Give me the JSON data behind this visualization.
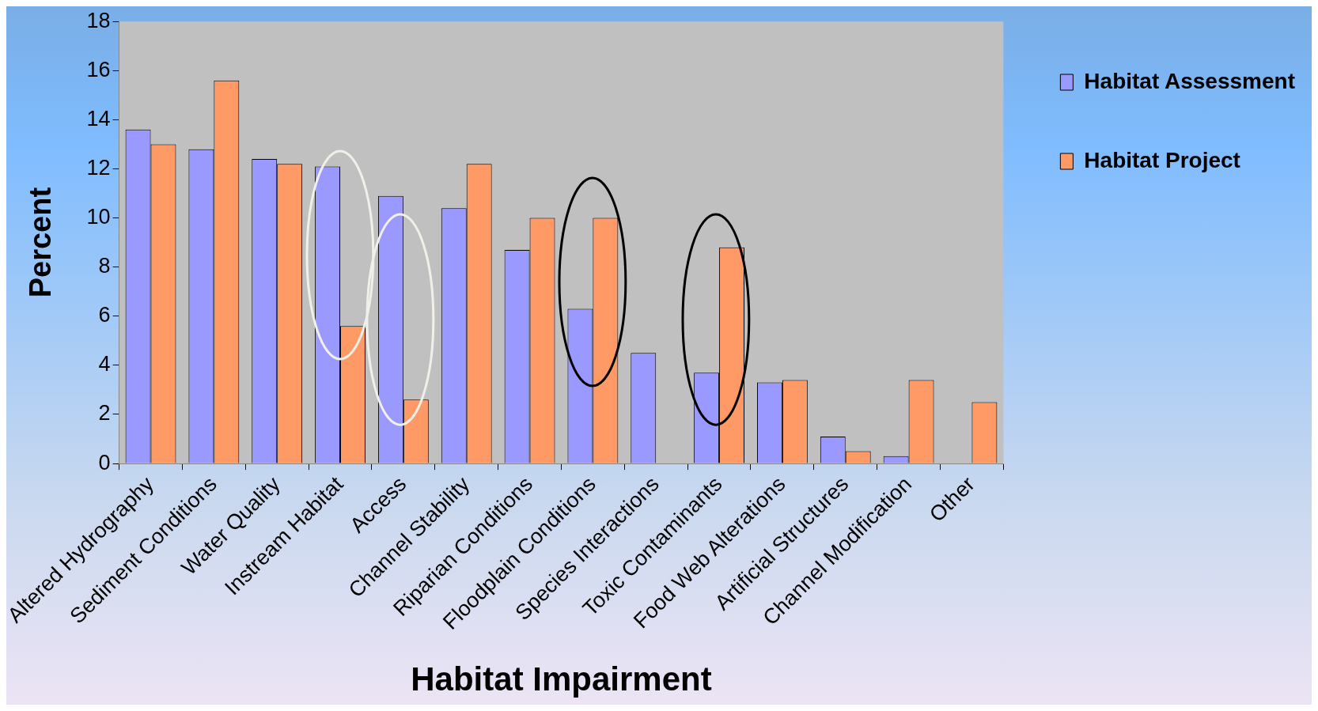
{
  "chart_data": {
    "type": "bar",
    "xlabel": "Habitat Impairment",
    "ylabel": "Percent",
    "categories": [
      "Altered Hydrography",
      "Sediment Conditions",
      "Water Quality",
      "Instream Habitat",
      "Access",
      "Channel Stability",
      "Riparian Conditions",
      "Floodplain Conditions",
      "Species Interactions",
      "Toxic Contaminants",
      "Food Web Alterations",
      "Artificial Structures",
      "Channel Modification",
      "Other"
    ],
    "series": [
      {
        "name": "Habitat Assessment",
        "color": "#9999ff",
        "values": [
          13.6,
          12.8,
          12.4,
          12.1,
          10.9,
          10.4,
          8.7,
          6.3,
          4.5,
          3.7,
          3.3,
          1.1,
          0.3,
          null
        ]
      },
      {
        "name": "Habitat Project",
        "color": "#ff9966",
        "values": [
          13.0,
          15.6,
          12.2,
          5.6,
          2.6,
          12.2,
          10.0,
          10.0,
          null,
          8.8,
          3.4,
          0.5,
          3.4,
          2.5
        ]
      }
    ],
    "ylim": [
      0,
      18
    ],
    "yticks": [
      0,
      2,
      4,
      6,
      8,
      10,
      12,
      14,
      16,
      18
    ],
    "grid": false,
    "legend": "right"
  }
}
